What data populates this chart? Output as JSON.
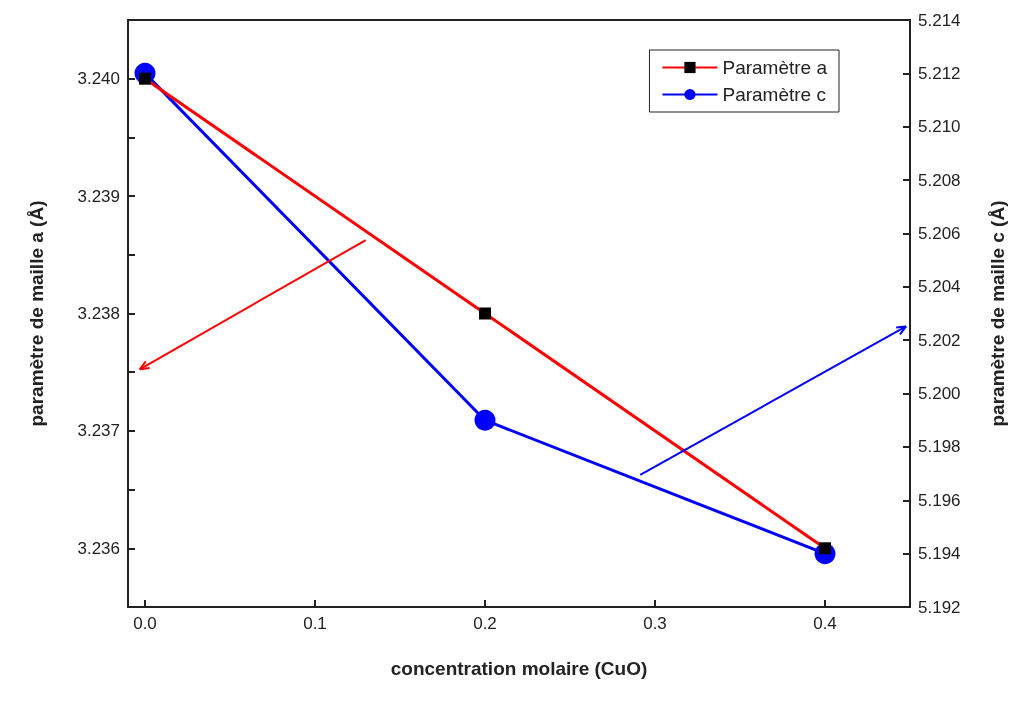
{
  "chart_data": {
    "type": "line",
    "xlabel": "concentration molaire (CuO)",
    "ylabel": "paramètre de maille a (Å)",
    "y2label": "paramètre de maille c (Å)",
    "x": [
      0,
      0.2,
      0.4
    ],
    "series": [
      {
        "name": "Paramètre a",
        "color": "#ff0000",
        "values": [
          3.24,
          3.238,
          3.236
        ],
        "marker": "square"
      },
      {
        "name": "Paramètre c",
        "color": "#0000ff",
        "values": [
          5.212,
          5.199,
          5.194
        ],
        "marker": "circle",
        "axis": "y2"
      }
    ],
    "xlim": [
      -0.01,
      0.45
    ],
    "xticks": [
      {
        "value": 0,
        "label": "0.0"
      },
      0.1,
      0.2,
      0.3,
      0.4
    ],
    "ylim": [
      3.2355,
      3.2405
    ],
    "yticks": [
      {
        "value": 3.2355,
        "label": null
      },
      3.236,
      {
        "value": 3.2365,
        "label": null
      },
      3.237,
      {
        "value": 3.2375,
        "label": null
      },
      3.238,
      {
        "value": 3.2385,
        "label": null
      },
      3.239,
      {
        "value": 3.2395,
        "label": null
      },
      {
        "value": 3.24,
        "label": "3.240"
      }
    ],
    "y2lim": [
      5.192,
      5.214
    ],
    "y2ticks": [
      5.192,
      5.194,
      5.196,
      5.198,
      {
        "value": 5.2,
        "label": "5.200"
      },
      5.202,
      5.204,
      5.206,
      5.208,
      {
        "value": 5.21,
        "label": "5.210"
      },
      5.212,
      5.214
    ],
    "legend": "top right",
    "grid": false,
    "line_style": "solid"
  }
}
